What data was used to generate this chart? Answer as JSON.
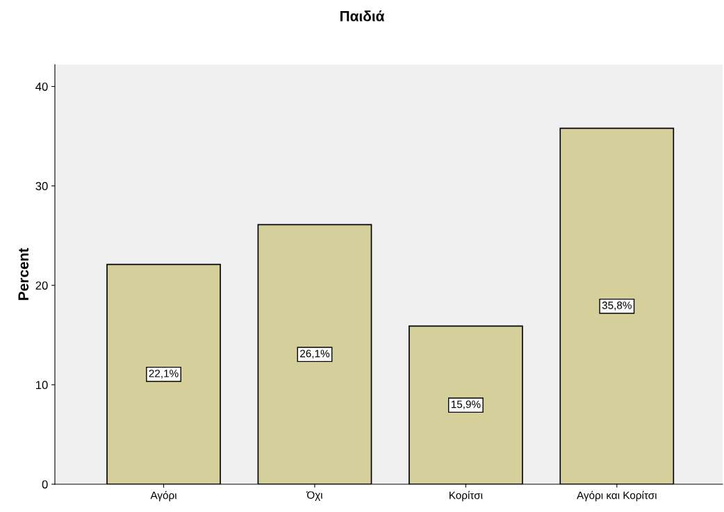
{
  "chart_data": {
    "type": "bar",
    "title": "Παιδιά",
    "ylabel": "Percent",
    "categories": [
      "Αγόρι",
      "Όχι",
      "Κορίτσι",
      "Αγόρι και Κορίτσι"
    ],
    "values": [
      22.1,
      26.1,
      15.9,
      35.8
    ],
    "value_labels": [
      "22,1%",
      "26,1%",
      "15,9%",
      "35,8%"
    ],
    "color": "#d4cf9b",
    "ylim": [
      0,
      42.2
    ],
    "yticks": [
      0,
      10,
      20,
      30,
      40
    ],
    "grid": false
  }
}
